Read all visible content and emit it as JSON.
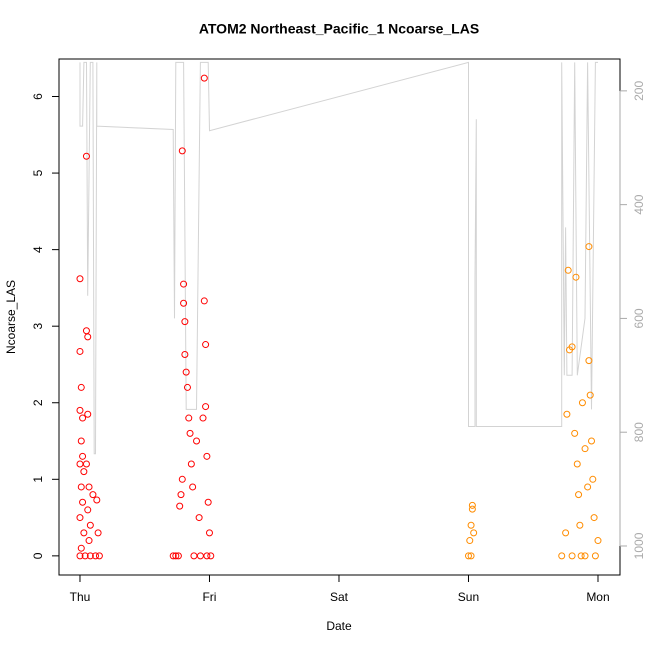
{
  "chart_data": {
    "type": "scatter",
    "title": "ATOM2 Northeast_Pacific_1 Ncoarse_LAS",
    "xlabel": "Date",
    "ylabel": "Ncoarse_LAS",
    "xlim": [
      -0.162,
      4.17
    ],
    "ylim": [
      -0.25,
      6.49
    ],
    "y2lim": [
      1051,
      144
    ],
    "xticks": [
      {
        "value": 0,
        "label": "Thu"
      },
      {
        "value": 1,
        "label": "Fri"
      },
      {
        "value": 2,
        "label": "Sat"
      },
      {
        "value": 3,
        "label": "Sun"
      },
      {
        "value": 4,
        "label": "Mon"
      }
    ],
    "yticks": [
      0,
      1,
      2,
      3,
      4,
      5,
      6
    ],
    "y2ticks": [
      200,
      400,
      600,
      800,
      1000
    ],
    "series": [
      {
        "color": "#ff0000",
        "x": [
          0.0,
          0.0,
          0.01,
          0.0,
          0.02,
          0.01,
          0.02,
          0.0,
          0.03,
          0.01,
          0.02,
          0.0,
          0.03,
          0.01,
          0.0,
          0.04,
          0.05,
          0.05,
          0.06,
          0.06,
          0.05,
          0.07,
          0.06,
          0.08,
          0.07,
          0.08,
          0.1,
          0.12,
          0.13,
          0.14,
          0.15,
          0.72,
          0.74,
          0.76,
          0.77,
          0.78,
          0.79,
          0.79,
          0.8,
          0.8,
          0.81,
          0.81,
          0.82,
          0.83,
          0.84,
          0.85,
          0.86,
          0.87,
          0.88,
          0.9,
          0.92,
          0.93,
          0.95,
          0.96,
          0.96,
          0.97,
          0.97,
          0.98,
          0.99,
          1.0,
          1.01,
          0.98
        ],
        "values": [
          3.62,
          2.67,
          2.2,
          1.9,
          1.8,
          1.5,
          1.3,
          1.2,
          1.1,
          0.9,
          0.7,
          0.5,
          0.3,
          0.1,
          0.0,
          0.0,
          5.22,
          2.94,
          2.86,
          1.85,
          1.2,
          0.9,
          0.6,
          0.4,
          0.2,
          0.0,
          0.8,
          0.0,
          0.73,
          0.3,
          0.0,
          0.0,
          0.0,
          0.0,
          0.65,
          0.8,
          1.0,
          5.29,
          3.55,
          3.3,
          3.06,
          2.63,
          2.4,
          2.2,
          1.8,
          1.6,
          1.2,
          0.9,
          0.0,
          1.5,
          0.5,
          0.0,
          1.8,
          6.24,
          3.33,
          2.76,
          1.95,
          1.3,
          0.7,
          0.3,
          0.0,
          0.0
        ]
      },
      {
        "color": "#ff8c00",
        "x": [
          3.0,
          3.01,
          3.02,
          3.03,
          3.03,
          3.04,
          3.02,
          3.72,
          3.75,
          3.76,
          3.77,
          3.78,
          3.8,
          3.82,
          3.83,
          3.84,
          3.85,
          3.86,
          3.87,
          3.88,
          3.9,
          3.92,
          3.93,
          3.93,
          3.94,
          3.95,
          3.96,
          3.97,
          3.98,
          4.0,
          3.8,
          3.9
        ],
        "values": [
          0.0,
          0.2,
          0.4,
          0.61,
          0.66,
          0.3,
          0.0,
          0.0,
          0.3,
          1.85,
          3.73,
          2.69,
          2.73,
          1.6,
          3.64,
          1.2,
          0.8,
          0.4,
          0.0,
          2.0,
          1.4,
          0.9,
          4.04,
          2.55,
          2.1,
          1.5,
          1.0,
          0.5,
          0.0,
          0.2,
          0.0,
          0.0
        ]
      },
      {
        "type": "line",
        "axis": "y2",
        "color": "#d3d3d3",
        "x": [
          0.0,
          0.0,
          0.02,
          0.03,
          0.05,
          0.06,
          0.08,
          0.1,
          0.11,
          0.12,
          0.13,
          0.13,
          0.72,
          0.73,
          0.74,
          0.8,
          0.82,
          0.9,
          0.93,
          0.96,
          0.99,
          1.0,
          3.0,
          3.0,
          3.05,
          3.05,
          3.06,
          3.06,
          3.72,
          3.72,
          3.74,
          3.75,
          3.76,
          3.8,
          3.82,
          3.84,
          3.9,
          3.92,
          3.95,
          3.98,
          4.0
        ],
        "values": [
          150,
          262,
          262,
          150,
          150,
          560,
          150,
          150,
          838,
          838,
          150,
          262,
          268,
          600,
          150,
          150,
          760,
          760,
          150,
          150,
          150,
          270,
          150,
          790,
          790,
          530,
          250,
          790,
          790,
          150,
          700,
          440,
          700,
          700,
          150,
          700,
          600,
          150,
          760,
          150,
          150
        ]
      }
    ]
  }
}
